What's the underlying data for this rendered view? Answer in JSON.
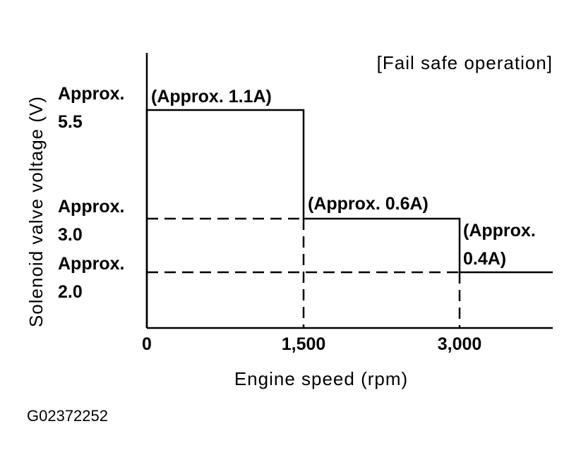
{
  "chart_data": {
    "type": "line",
    "title": "[Fail safe operation]",
    "xlabel": "Engine speed (rpm)",
    "ylabel": "Solenoid valve voltage (V)",
    "xlim": [
      0,
      2600
    ],
    "ylim": [
      0,
      5.5
    ],
    "x_ticks": [
      {
        "value": 0,
        "label": "0"
      },
      {
        "value": 1500,
        "label": "1,500"
      },
      {
        "value": 3000,
        "label": "3,000"
      }
    ],
    "y_ticks": [
      {
        "value": 5.5,
        "label_lines": [
          "Approx.",
          "5.5"
        ]
      },
      {
        "value": 3.0,
        "label_lines": [
          "Approx.",
          "3.0"
        ]
      },
      {
        "value": 2.0,
        "label_lines": [
          "Approx.",
          "2.0"
        ]
      }
    ],
    "series": [
      {
        "steps": [
          {
            "x_start": 0,
            "x_end": 1500,
            "y": 5.5,
            "current_label_lines": [
              "(Approx. 1.1A)"
            ]
          },
          {
            "x_start": 1500,
            "x_end": 3000,
            "y": 3.0,
            "current_label_lines": [
              "(Approx. 0.6A)"
            ]
          },
          {
            "x_start": 3000,
            "x_end": null,
            "y": 2.0,
            "current_label_lines": [
              "(Approx.",
              "0.4A)"
            ]
          }
        ]
      }
    ],
    "reference_lines": [
      {
        "axis": "y",
        "value": 3.0,
        "style": "dashed"
      },
      {
        "axis": "y",
        "value": 2.0,
        "style": "dashed"
      },
      {
        "axis": "x",
        "value": 1500,
        "style": "dashed"
      },
      {
        "axis": "x",
        "value": 3000,
        "style": "dashed"
      }
    ],
    "grid": false,
    "legend": "none"
  },
  "figure_code": "G02372252"
}
